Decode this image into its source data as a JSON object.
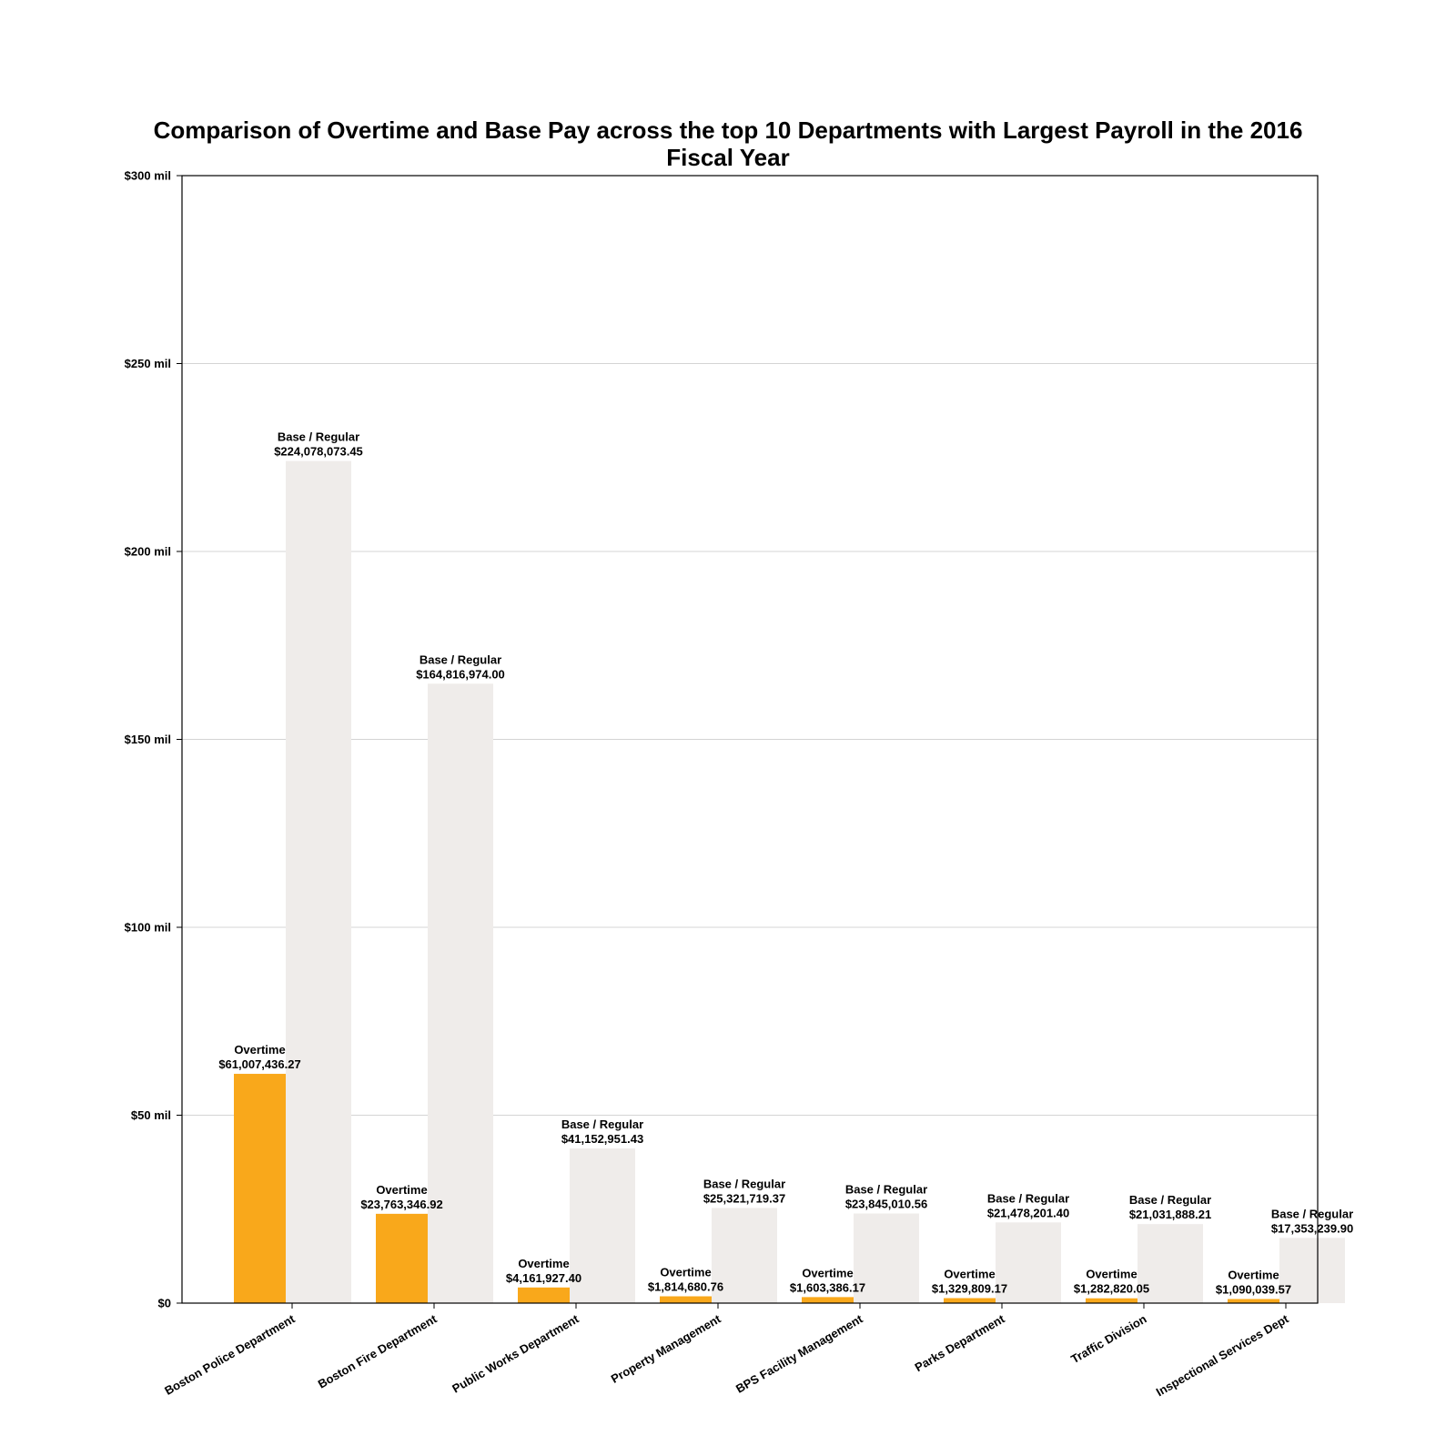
{
  "chart_data": {
    "type": "bar",
    "title": "Comparison of Overtime and Base Pay across the top 10 Departments with Largest Payroll in the 2016 Fiscal Year",
    "xlabel": "",
    "ylabel": "",
    "ylim": [
      0,
      300000000
    ],
    "grid": "horizontal",
    "yticks": [
      {
        "value": 0,
        "label": "$0"
      },
      {
        "value": 50000000,
        "label": "$50 mil"
      },
      {
        "value": 100000000,
        "label": "$100 mil"
      },
      {
        "value": 150000000,
        "label": "$150 mil"
      },
      {
        "value": 200000000,
        "label": "$200 mil"
      },
      {
        "value": 250000000,
        "label": "$250 mil"
      },
      {
        "value": 300000000,
        "label": "$300 mil"
      }
    ],
    "categories": [
      "Boston Police Department",
      "Boston Fire Department",
      "Public Works Department",
      "Property Management",
      "BPS Facility Management",
      "Parks Department",
      "Traffic Division",
      "Inspectional Services Dept"
    ],
    "series": [
      {
        "name": "Overtime",
        "color": "#f9a81b",
        "values": [
          61007436.27,
          23763346.92,
          4161927.4,
          1814680.76,
          1603386.17,
          1329809.17,
          1282820.05,
          1090039.57
        ],
        "labels": [
          "$61,007,436.27",
          "$23,763,346.92",
          "$4,161,927.40",
          "$1,814,680.76",
          "$1,603,386.17",
          "$1,329,809.17",
          "$1,282,820.05",
          "$1,090,039.57"
        ]
      },
      {
        "name": "Base / Regular",
        "color": "#efecea",
        "values": [
          224078073.45,
          164816974.0,
          41152951.43,
          25321719.37,
          23845010.56,
          21478201.4,
          21031888.21,
          17353239.9
        ],
        "labels": [
          "$224,078,073.45",
          "$164,816,974.00",
          "$41,152,951.43",
          "$25,321,719.37",
          "$23,845,010.56",
          "$21,478,201.40",
          "$21,031,888.21",
          "$17,353,239.90"
        ]
      }
    ]
  }
}
